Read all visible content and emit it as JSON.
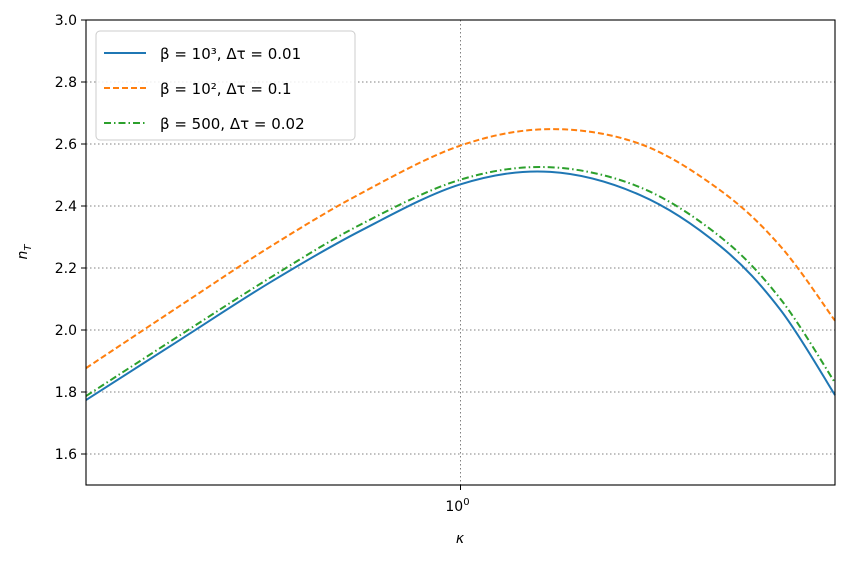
{
  "chart_data": {
    "type": "line",
    "title": "",
    "xlabel": "κ",
    "ylabel": "n_T",
    "xscale": "log",
    "xlim": [
      0.5,
      2.0
    ],
    "ylim": [
      1.5,
      3.0
    ],
    "xticks": [
      {
        "value": 1,
        "label": "10",
        "exp": "0"
      }
    ],
    "yticks": [
      1.6,
      1.8,
      2.0,
      2.2,
      2.4,
      2.6,
      2.8,
      3.0
    ],
    "ytick_labels": [
      "1.6",
      "1.8",
      "2.0",
      "2.2",
      "2.4",
      "2.6",
      "2.8",
      "3.0"
    ],
    "grid": true,
    "legend_position": "top-left",
    "x": [
      0.5,
      0.596,
      0.704,
      0.831,
      1.0,
      1.181,
      1.395,
      1.618,
      1.808,
      2.0
    ],
    "series": [
      {
        "name": "β = 10³,  Δτ = 0.01",
        "color": "#1f77b4",
        "style": "solid",
        "values": [
          1.774,
          1.97,
          2.155,
          2.32,
          2.47,
          2.51,
          2.435,
          2.27,
          2.065,
          1.79
        ]
      },
      {
        "name": "β = 10²,  Δτ = 0.1",
        "color": "#ff7f0e",
        "style": "dashed",
        "values": [
          1.877,
          2.08,
          2.27,
          2.44,
          2.595,
          2.648,
          2.6,
          2.45,
          2.27,
          2.03
        ]
      },
      {
        "name": "β = 500,  Δτ = 0.02",
        "color": "#2ca02c",
        "style": "dashdot",
        "values": [
          1.787,
          1.985,
          2.17,
          2.34,
          2.485,
          2.525,
          2.46,
          2.3,
          2.1,
          1.83
        ]
      }
    ]
  }
}
